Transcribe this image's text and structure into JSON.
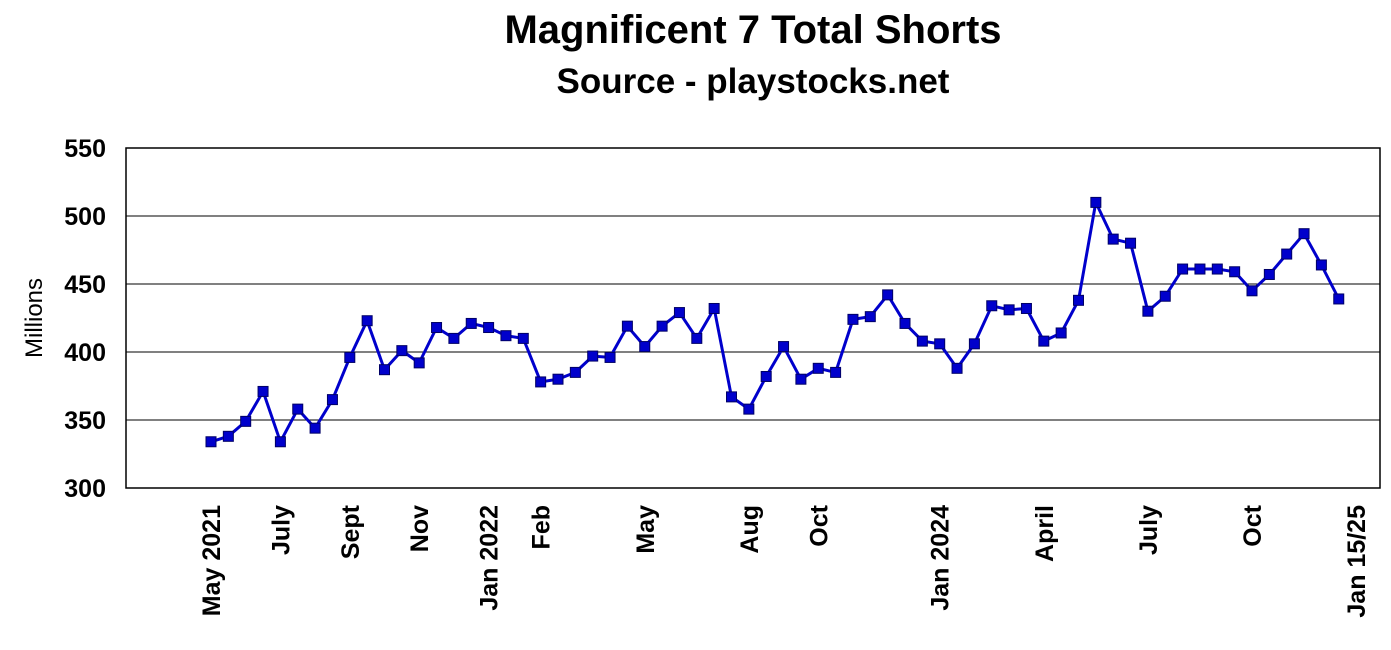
{
  "chart_data": {
    "type": "line",
    "title": "Magnificent 7 Total Shorts",
    "subtitle": "Source - playstocks.net",
    "ylabel": "Millions",
    "ylim": [
      300,
      550
    ],
    "yticks": [
      300,
      350,
      400,
      450,
      500,
      550
    ],
    "grid": true,
    "legend": "none",
    "series_color": "#0000cc",
    "marker_color": "#0000cc",
    "x_tick_labels": [
      {
        "label": "May 2021",
        "index": 0
      },
      {
        "label": "July",
        "index": 4
      },
      {
        "label": "Sept",
        "index": 8
      },
      {
        "label": "Nov",
        "index": 12
      },
      {
        "label": "Jan 2022",
        "index": 16
      },
      {
        "label": "Feb",
        "index": 19
      },
      {
        "label": "May",
        "index": 25
      },
      {
        "label": "Aug",
        "index": 31
      },
      {
        "label": "Oct",
        "index": 35
      },
      {
        "label": "Jan 2024",
        "index": 42
      },
      {
        "label": "April",
        "index": 48
      },
      {
        "label": "July",
        "index": 54
      },
      {
        "label": "Oct",
        "index": 60
      },
      {
        "label": "Jan 15/25",
        "index": 66
      }
    ],
    "series": [
      {
        "values": [
          334,
          338,
          349,
          371,
          334,
          358,
          344,
          365,
          396,
          423,
          387,
          401,
          392,
          418,
          410,
          421,
          418,
          412,
          410,
          378,
          380,
          385,
          397,
          396,
          419,
          404,
          419,
          429,
          410,
          432,
          367,
          358,
          382,
          404,
          380,
          388,
          385,
          424,
          426,
          442,
          421,
          408,
          406,
          388,
          406,
          434,
          431,
          432,
          408,
          414,
          438,
          510,
          483,
          480,
          430,
          441,
          461,
          461,
          461,
          459,
          445,
          457,
          472,
          487,
          464,
          439
        ]
      }
    ]
  }
}
